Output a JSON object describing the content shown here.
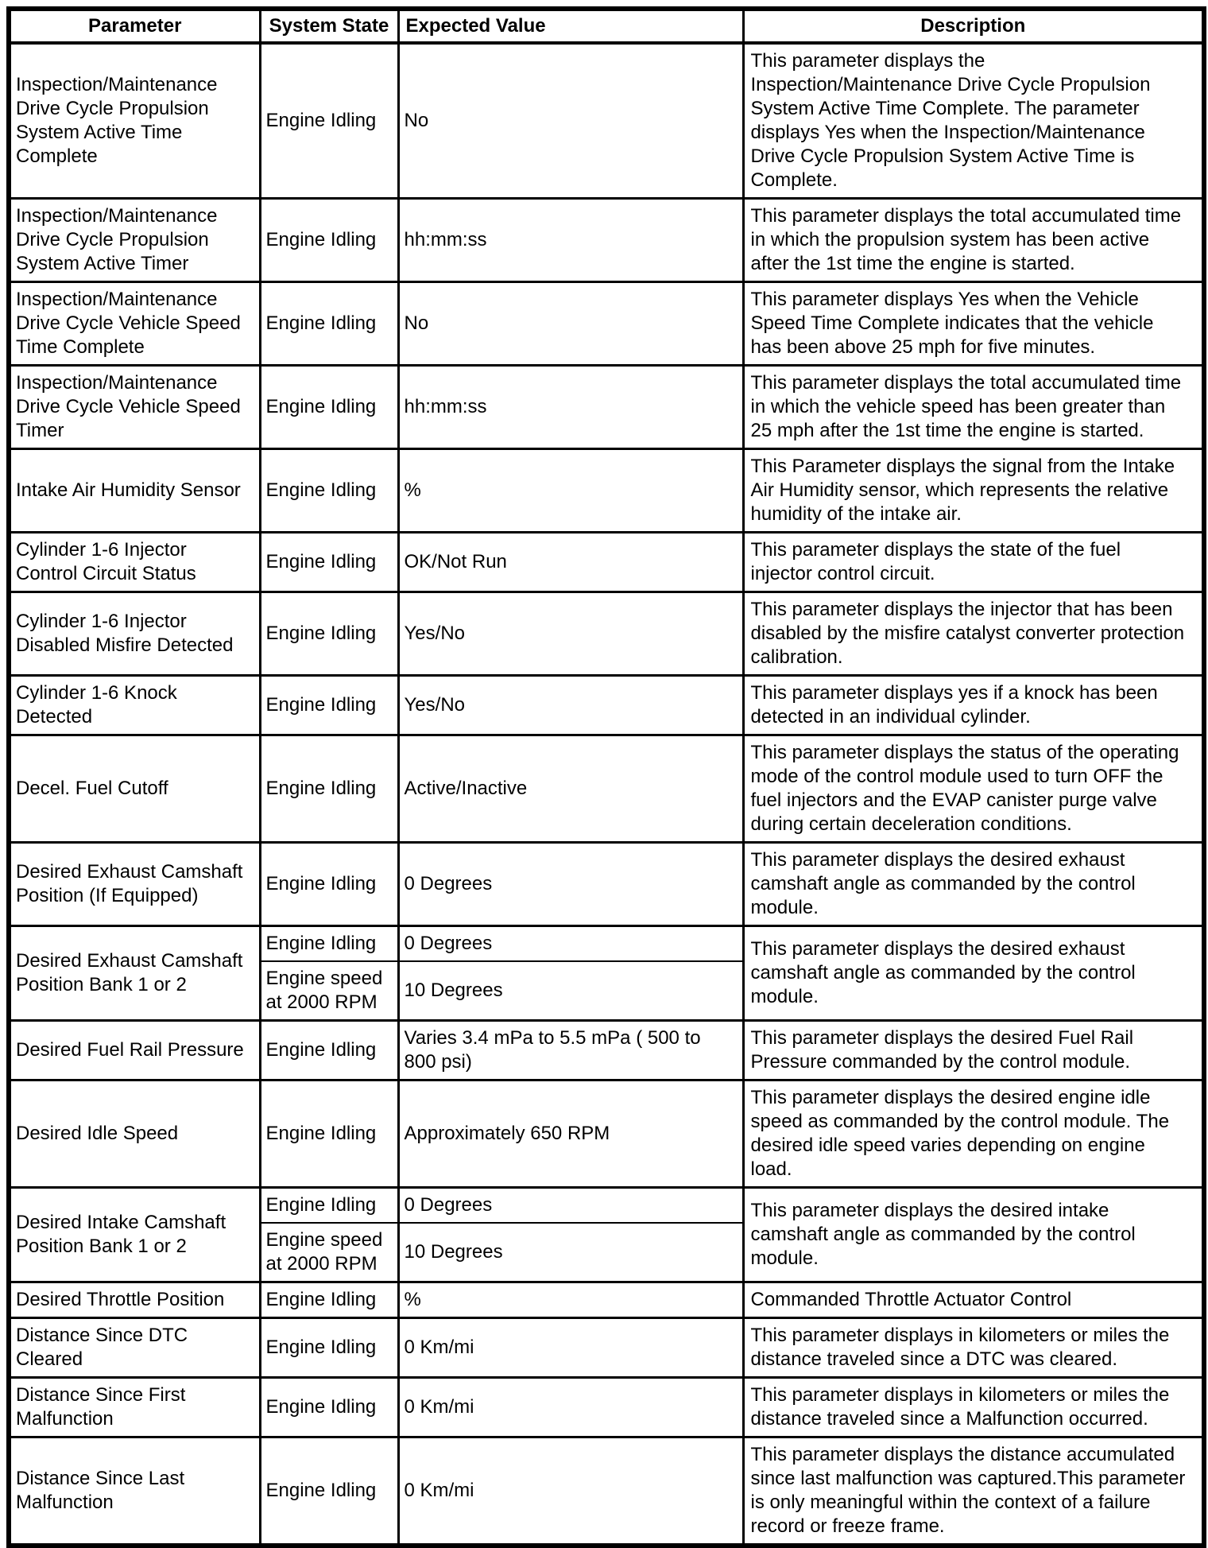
{
  "table": {
    "columns": [
      "Parameter",
      "System State",
      "Expected Value",
      "Description"
    ],
    "rows": [
      {
        "parameter": "Inspection/Maintenance Drive Cycle Propulsion System Active Time Complete",
        "states": [
          {
            "state": "Engine Idling",
            "value": "No"
          }
        ],
        "description": "This parameter displays the Inspection/Maintenance Drive Cycle Propulsion System Active Time Complete. The parameter displays Yes when the Inspection/Maintenance Drive Cycle Propulsion System Active Time is Complete."
      },
      {
        "parameter": "Inspection/Maintenance Drive Cycle Propulsion System Active Timer",
        "states": [
          {
            "state": "Engine Idling",
            "value": "hh:mm:ss"
          }
        ],
        "description": "This parameter displays the total accumulated time in which the propulsion system has been active after the 1st time the engine is started."
      },
      {
        "parameter": "Inspection/Maintenance Drive Cycle Vehicle Speed Time Complete",
        "states": [
          {
            "state": "Engine Idling",
            "value": "No"
          }
        ],
        "description": "This parameter displays Yes when the Vehicle Speed Time Complete indicates that the vehicle has been above 25 mph for five minutes."
      },
      {
        "parameter": "Inspection/Maintenance Drive Cycle Vehicle Speed Timer",
        "states": [
          {
            "state": "Engine Idling",
            "value": "hh:mm:ss"
          }
        ],
        "description": "This parameter displays the total accumulated time in which the vehicle speed has been greater than 25 mph after the 1st time the engine is started."
      },
      {
        "parameter": "Intake Air Humidity Sensor",
        "states": [
          {
            "state": "Engine Idling",
            "value": "%"
          }
        ],
        "description": "This Parameter displays the signal from the Intake Air Humidity sensor, which represents the relative humidity of the intake air."
      },
      {
        "parameter": "Cylinder 1-6 Injector Control Circuit Status",
        "states": [
          {
            "state": "Engine Idling",
            "value": "OK/Not Run"
          }
        ],
        "description": "This parameter displays the state of the fuel injector control circuit."
      },
      {
        "parameter": "Cylinder 1-6 Injector Disabled Misfire Detected",
        "states": [
          {
            "state": "Engine Idling",
            "value": "Yes/No"
          }
        ],
        "description": "This parameter displays the injector that has been disabled by the misfire catalyst converter protection calibration."
      },
      {
        "parameter": "Cylinder 1-6 Knock Detected",
        "states": [
          {
            "state": "Engine Idling",
            "value": "Yes/No"
          }
        ],
        "description": "This parameter displays yes if a knock has been detected in an individual cylinder."
      },
      {
        "parameter": "Decel. Fuel Cutoff",
        "states": [
          {
            "state": "Engine Idling",
            "value": "Active/Inactive"
          }
        ],
        "description": "This parameter displays the status of the operating mode of the control module used to turn OFF the fuel injectors and the EVAP canister purge valve during certain deceleration conditions."
      },
      {
        "parameter": "Desired Exhaust Camshaft Position (If Equipped)",
        "states": [
          {
            "state": "Engine Idling",
            "value": "0 Degrees"
          }
        ],
        "description": "This parameter displays the desired exhaust camshaft angle as commanded by the control module."
      },
      {
        "parameter": "Desired Exhaust Camshaft Position Bank 1 or 2",
        "states": [
          {
            "state": "Engine Idling",
            "value": "0 Degrees"
          },
          {
            "state": "Engine speed at 2000 RPM",
            "value": "10 Degrees"
          }
        ],
        "description": "This parameter displays the desired exhaust camshaft angle as commanded by the control module."
      },
      {
        "parameter": "Desired Fuel Rail Pressure",
        "states": [
          {
            "state": "Engine Idling",
            "value": "Varies 3.4 mPa to 5.5 mPa ( 500 to 800 psi)"
          }
        ],
        "description": "This parameter displays the desired Fuel Rail Pressure commanded by the control module."
      },
      {
        "parameter": "Desired Idle Speed",
        "states": [
          {
            "state": "Engine Idling",
            "value": "Approximately 650 RPM"
          }
        ],
        "description": "This parameter displays the desired engine idle speed as commanded by the control module. The desired idle speed varies depending on engine load."
      },
      {
        "parameter": "Desired Intake Camshaft Position Bank 1 or 2",
        "states": [
          {
            "state": "Engine Idling",
            "value": "0 Degrees"
          },
          {
            "state": "Engine speed at 2000 RPM",
            "value": "10 Degrees"
          }
        ],
        "description": "This parameter displays the desired intake camshaft angle as commanded by the control module."
      },
      {
        "parameter": "Desired Throttle Position",
        "states": [
          {
            "state": "Engine Idling",
            "value": "%"
          }
        ],
        "description": "Commanded Throttle Actuator Control"
      },
      {
        "parameter": "Distance Since DTC Cleared",
        "states": [
          {
            "state": "Engine Idling",
            "value": "0 Km/mi"
          }
        ],
        "description": "This parameter displays in kilometers or miles the distance traveled since a DTC was cleared."
      },
      {
        "parameter": "Distance Since First Malfunction",
        "states": [
          {
            "state": "Engine Idling",
            "value": "0 Km/mi"
          }
        ],
        "description": "This parameter displays in kilometers or miles the distance traveled since a Malfunction occurred."
      },
      {
        "parameter": "Distance Since Last Malfunction",
        "states": [
          {
            "state": "Engine Idling",
            "value": "0 Km/mi"
          }
        ],
        "description": "This parameter displays the distance accumulated since last malfunction was captured.This parameter is only meaningful within the context of a failure record or freeze frame."
      }
    ]
  }
}
